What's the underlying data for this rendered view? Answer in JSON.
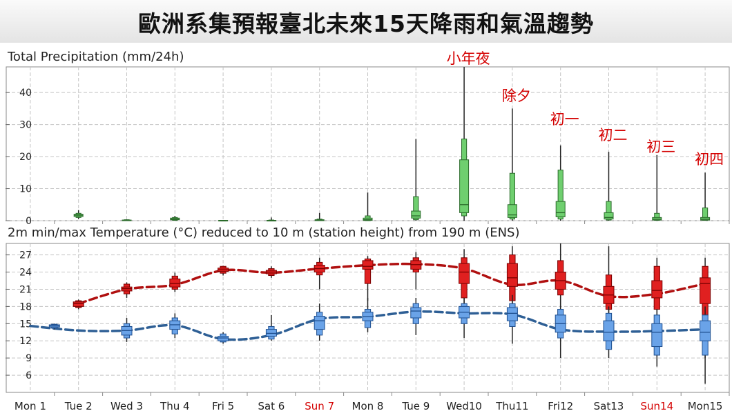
{
  "page_title": "歐洲系集預報臺北未來15天降雨和氣溫趨勢",
  "chart_data": [
    {
      "type": "boxplot",
      "title": "Total Precipitation (mm/24h)",
      "y_ticks": [
        "0",
        "10",
        "20",
        "30",
        "40"
      ],
      "ylim": [
        0,
        48
      ],
      "grid": true,
      "color": "#6fcf6f",
      "outline": "#2b6b2b",
      "days": [
        {
          "day": 2,
          "min": 0.5,
          "q10": 1.0,
          "q25": 1.3,
          "median": 1.7,
          "q75": 2.0,
          "q90": 2.3,
          "max": 3.3
        },
        {
          "day": 3,
          "min": 0,
          "q10": 0,
          "q25": 0,
          "median": 0.1,
          "q75": 0.2,
          "q90": 0.3,
          "max": 0.4
        },
        {
          "day": 4,
          "min": 0,
          "q10": 0.1,
          "q25": 0.3,
          "median": 0.5,
          "q75": 0.8,
          "q90": 1.0,
          "max": 1.5
        },
        {
          "day": 5,
          "min": 0,
          "q10": 0,
          "q25": 0,
          "median": 0,
          "q75": 0.1,
          "q90": 0.1,
          "max": 0.2
        },
        {
          "day": 6,
          "min": 0,
          "q10": 0,
          "q25": 0,
          "median": 0,
          "q75": 0.1,
          "q90": 0.2,
          "max": 1.0
        },
        {
          "day": 7,
          "min": 0,
          "q10": 0,
          "q25": 0,
          "median": 0.1,
          "q75": 0.3,
          "q90": 0.5,
          "max": 2.4
        },
        {
          "day": 8,
          "min": 0,
          "q10": 0,
          "q25": 0.1,
          "median": 0.3,
          "q75": 0.8,
          "q90": 1.5,
          "max": 8.8
        },
        {
          "day": 9,
          "min": 0,
          "q10": 0.3,
          "q25": 0.8,
          "median": 1.5,
          "q75": 3.0,
          "q90": 7.5,
          "max": 25.5
        },
        {
          "day": 10,
          "min": 0,
          "q10": 1.5,
          "q25": 2.5,
          "median": 5.0,
          "q75": 19.0,
          "q90": 25.5,
          "max": 48.0
        },
        {
          "day": 11,
          "min": 0,
          "q10": 0.5,
          "q25": 1.0,
          "median": 1.8,
          "q75": 5.0,
          "q90": 14.8,
          "max": 35.0
        },
        {
          "day": 12,
          "min": 0,
          "q10": 0.5,
          "q25": 1.2,
          "median": 2.5,
          "q75": 6.0,
          "q90": 15.8,
          "max": 23.5
        },
        {
          "day": 13,
          "min": 0,
          "q10": 0.2,
          "q25": 0.5,
          "median": 1.0,
          "q75": 2.5,
          "q90": 6.0,
          "max": 21.5
        },
        {
          "day": 14,
          "min": 0,
          "q10": 0.1,
          "q25": 0.2,
          "median": 0.5,
          "q75": 1.0,
          "q90": 2.3,
          "max": 20.5
        },
        {
          "day": 15,
          "min": 0,
          "q10": 0.1,
          "q25": 0.2,
          "median": 0.5,
          "q75": 1.0,
          "q90": 4.0,
          "max": 15.0
        }
      ],
      "annotations": [
        {
          "text": "小年夜",
          "day": 10
        },
        {
          "text": "除夕",
          "day": 11
        },
        {
          "text": "初一",
          "day": 12
        },
        {
          "text": "初二",
          "day": 13
        },
        {
          "text": "初三",
          "day": 14
        },
        {
          "text": "初四",
          "day": 15
        }
      ]
    },
    {
      "type": "boxplot",
      "title": "2m min/max Temperature (°C) reduced to 10 m (station height) from 190 m (ENS)",
      "y_ticks": [
        "6",
        "9",
        "12",
        "15",
        "18",
        "21",
        "24",
        "27"
      ],
      "ylim": [
        3,
        29
      ],
      "grid": true,
      "x_ticks": [
        "Mon 1",
        "Tue 2",
        "Wed 3",
        "Thu 4",
        "Fri 5",
        "Sat 6",
        "Sun 7",
        "Mon 8",
        "Tue 9",
        "Wed10",
        "Thu11",
        "Fri12",
        "Sat13",
        "Sun14",
        "Mon15"
      ],
      "x_tick_colors": [
        "#222222",
        "#222222",
        "#222222",
        "#222222",
        "#222222",
        "#222222",
        "#d40000",
        "#222222",
        "#222222",
        "#222222",
        "#222222",
        "#222222",
        "#222222",
        "#d40000",
        "#222222"
      ],
      "series": [
        {
          "name": "max",
          "color": "#e02020",
          "outline": "#7a0000",
          "trend_color": "#b01010",
          "trend": [
            {
              "x": 2,
              "y": 18.5
            },
            {
              "x": 3,
              "y": 21.0
            },
            {
              "x": 4,
              "y": 21.8
            },
            {
              "x": 5,
              "y": 24.3
            },
            {
              "x": 6,
              "y": 23.9
            },
            {
              "x": 7,
              "y": 24.6
            },
            {
              "x": 8,
              "y": 25.2
            },
            {
              "x": 9,
              "y": 25.4
            },
            {
              "x": 10,
              "y": 24.6
            },
            {
              "x": 11,
              "y": 21.8
            },
            {
              "x": 12,
              "y": 22.5
            },
            {
              "x": 13,
              "y": 19.8
            },
            {
              "x": 14,
              "y": 20.2
            },
            {
              "x": 15,
              "y": 22.0
            }
          ],
          "days": [
            {
              "day": 2,
              "min": 17.5,
              "q10": 17.8,
              "q25": 18.0,
              "median": 18.5,
              "q75": 18.8,
              "q90": 19.0,
              "max": 19.2
            },
            {
              "day": 3,
              "min": 19.5,
              "q10": 20.2,
              "q25": 20.7,
              "median": 21.1,
              "q75": 21.4,
              "q90": 21.9,
              "max": 22.2
            },
            {
              "day": 4,
              "min": 20.5,
              "q10": 21.0,
              "q25": 21.4,
              "median": 22.0,
              "q75": 22.8,
              "q90": 23.3,
              "max": 23.9
            },
            {
              "day": 5,
              "min": 23.4,
              "q10": 23.8,
              "q25": 24.1,
              "median": 24.4,
              "q75": 24.7,
              "q90": 25.0,
              "max": 25.1
            },
            {
              "day": 6,
              "min": 23.0,
              "q10": 23.4,
              "q25": 23.7,
              "median": 24.0,
              "q75": 24.3,
              "q90": 24.6,
              "max": 25.0
            },
            {
              "day": 7,
              "min": 21.0,
              "q10": 23.5,
              "q25": 24.0,
              "median": 24.6,
              "q75": 25.2,
              "q90": 25.7,
              "max": 26.5
            },
            {
              "day": 8,
              "min": 19.0,
              "q10": 22.0,
              "q25": 24.5,
              "median": 25.0,
              "q75": 26.0,
              "q90": 26.3,
              "max": 26.8
            },
            {
              "day": 9,
              "min": 21.0,
              "q10": 24.0,
              "q25": 24.5,
              "median": 25.3,
              "q75": 26.0,
              "q90": 26.5,
              "max": 27.5
            },
            {
              "day": 10,
              "min": 18.5,
              "q10": 19.5,
              "q25": 22.0,
              "median": 24.0,
              "q75": 25.5,
              "q90": 26.5,
              "max": 28.0
            },
            {
              "day": 11,
              "min": 18.0,
              "q10": 19.0,
              "q25": 21.5,
              "median": 23.0,
              "q75": 25.5,
              "q90": 27.0,
              "max": 28.5
            },
            {
              "day": 12,
              "min": 16.5,
              "q10": 20.0,
              "q25": 21.0,
              "median": 22.5,
              "q75": 24.0,
              "q90": 26.0,
              "max": 29.0
            },
            {
              "day": 13,
              "min": 13.5,
              "q10": 17.5,
              "q25": 18.5,
              "median": 20.0,
              "q75": 21.5,
              "q90": 23.5,
              "max": 28.5
            },
            {
              "day": 14,
              "min": 15.5,
              "q10": 17.5,
              "q25": 19.5,
              "median": 20.8,
              "q75": 22.5,
              "q90": 25.0,
              "max": 26.5
            },
            {
              "day": 15,
              "min": 9.0,
              "q10": 16.5,
              "q25": 18.5,
              "median": 22.0,
              "q75": 23.0,
              "q90": 25.0,
              "max": 26.5
            }
          ]
        },
        {
          "name": "min",
          "color": "#6aa3e8",
          "outline": "#1f4f8f",
          "trend_color": "#2e5f95",
          "trend": [
            {
              "x": 1,
              "y": 14.6
            },
            {
              "x": 2,
              "y": 13.8
            },
            {
              "x": 3,
              "y": 13.8
            },
            {
              "x": 4,
              "y": 14.7
            },
            {
              "x": 5,
              "y": 12.3
            },
            {
              "x": 6,
              "y": 13.0
            },
            {
              "x": 7,
              "y": 15.8
            },
            {
              "x": 8,
              "y": 16.2
            },
            {
              "x": 9,
              "y": 17.1
            },
            {
              "x": 10,
              "y": 16.8
            },
            {
              "x": 11,
              "y": 16.6
            },
            {
              "x": 12,
              "y": 14.0
            },
            {
              "x": 13,
              "y": 13.6
            },
            {
              "x": 14,
              "y": 13.7
            },
            {
              "x": 15,
              "y": 14.0
            }
          ],
          "days": [
            {
              "day": 1.5,
              "min": 14.0,
              "q10": 14.2,
              "q25": 14.4,
              "median": 14.6,
              "q75": 14.8,
              "q90": 14.9,
              "max": 15.0
            },
            {
              "day": 3,
              "min": 11.8,
              "q10": 12.5,
              "q25": 13.0,
              "median": 13.8,
              "q75": 14.5,
              "q90": 15.0,
              "max": 16.0
            },
            {
              "day": 4,
              "min": 12.5,
              "q10": 13.2,
              "q25": 14.0,
              "median": 14.8,
              "q75": 15.5,
              "q90": 16.0,
              "max": 16.8
            },
            {
              "day": 5,
              "min": 11.5,
              "q10": 11.8,
              "q25": 12.0,
              "median": 12.5,
              "q75": 12.8,
              "q90": 13.2,
              "max": 13.5
            },
            {
              "day": 6,
              "min": 12.0,
              "q10": 12.3,
              "q25": 12.8,
              "median": 13.3,
              "q75": 14.0,
              "q90": 14.5,
              "max": 16.5
            },
            {
              "day": 7,
              "min": 12.0,
              "q10": 13.0,
              "q25": 14.0,
              "median": 15.5,
              "q75": 16.3,
              "q90": 17.0,
              "max": 18.5
            },
            {
              "day": 8,
              "min": 13.5,
              "q10": 14.3,
              "q25": 15.5,
              "median": 16.2,
              "q75": 17.0,
              "q90": 17.5,
              "max": 19.5
            },
            {
              "day": 9,
              "min": 13.0,
              "q10": 15.0,
              "q25": 16.0,
              "median": 17.2,
              "q75": 17.8,
              "q90": 18.5,
              "max": 19.5
            },
            {
              "day": 10,
              "min": 12.5,
              "q10": 15.0,
              "q25": 16.0,
              "median": 17.0,
              "q75": 18.0,
              "q90": 18.5,
              "max": 19.5
            },
            {
              "day": 11,
              "min": 11.5,
              "q10": 14.5,
              "q25": 15.5,
              "median": 16.8,
              "q75": 17.8,
              "q90": 18.5,
              "max": 20.0
            },
            {
              "day": 12,
              "min": 9.0,
              "q10": 12.5,
              "q25": 13.5,
              "median": 15.0,
              "q75": 16.5,
              "q90": 17.5,
              "max": 19.8
            },
            {
              "day": 13,
              "min": 9.0,
              "q10": 10.5,
              "q25": 12.0,
              "median": 13.5,
              "q75": 15.5,
              "q90": 16.8,
              "max": 18.0
            },
            {
              "day": 14,
              "min": 7.5,
              "q10": 9.5,
              "q25": 11.0,
              "median": 13.5,
              "q75": 15.0,
              "q90": 16.5,
              "max": 17.5
            },
            {
              "day": 15,
              "min": 4.5,
              "q10": 9.5,
              "q25": 12.0,
              "median": 13.5,
              "q75": 15.5,
              "q90": 16.5,
              "max": 18.0
            }
          ]
        }
      ]
    }
  ]
}
